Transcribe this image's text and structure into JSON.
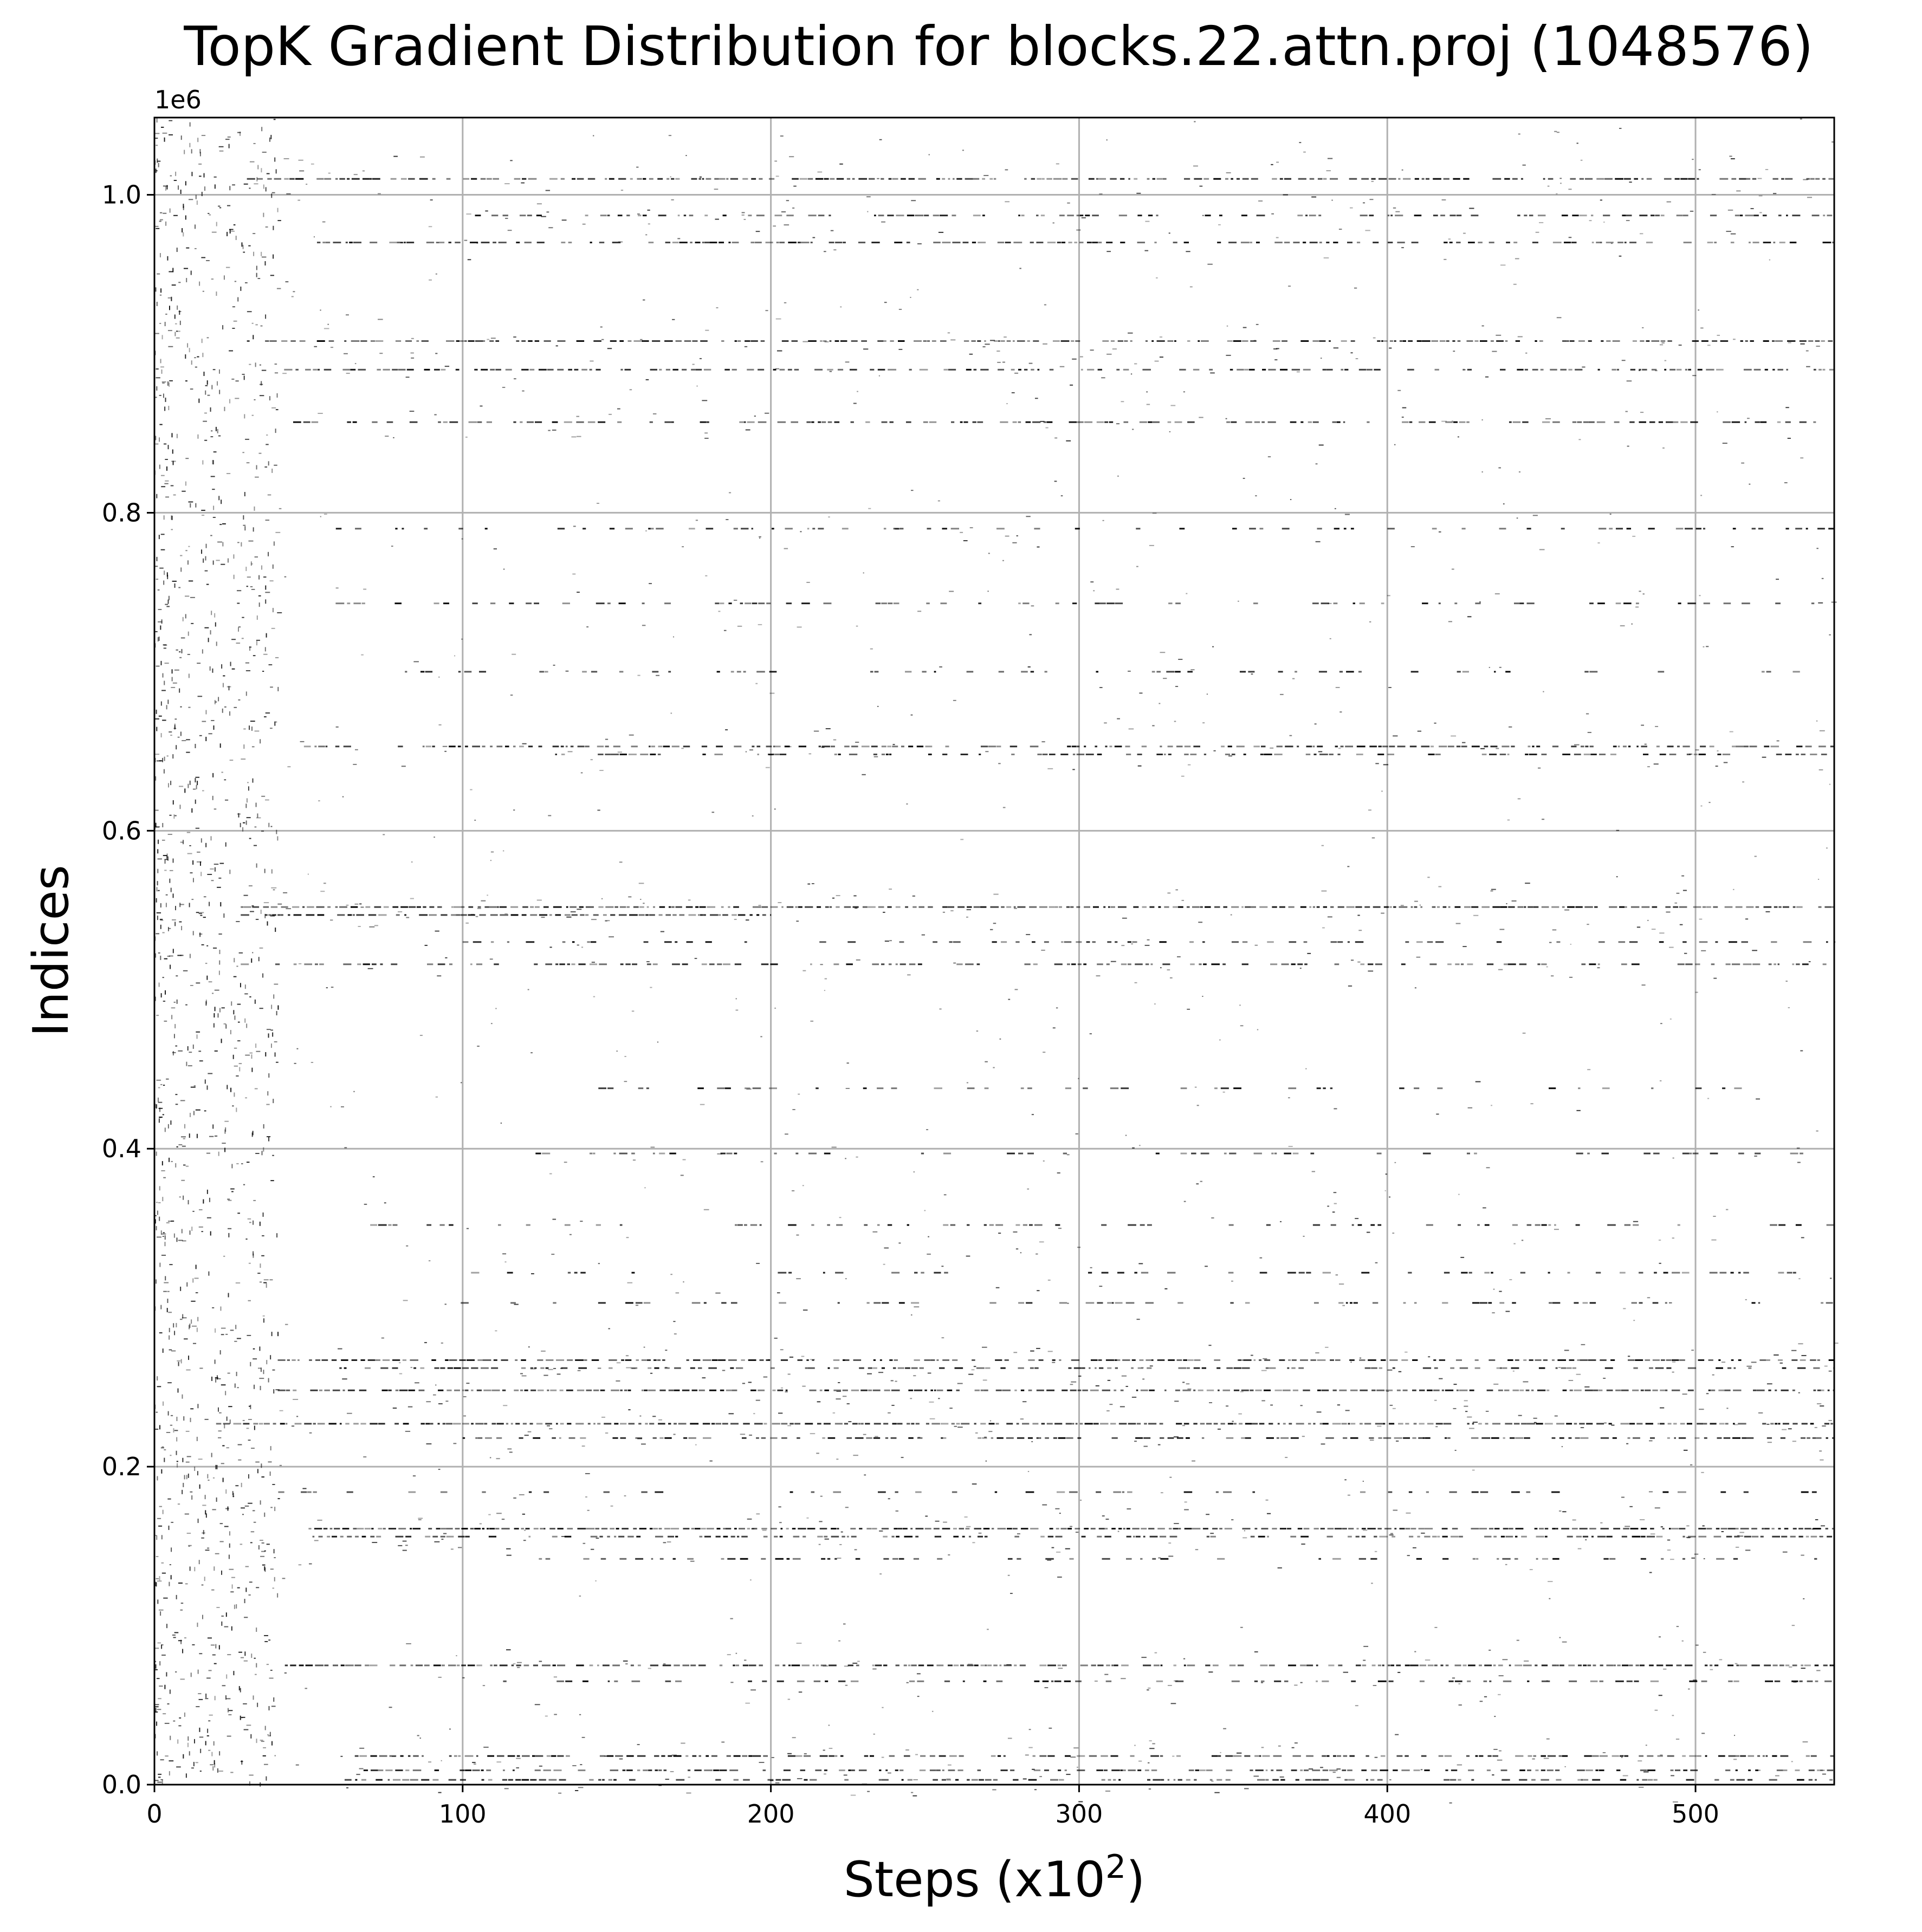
{
  "chart_data": {
    "type": "scatter",
    "title": "TopK Gradient Distribution for blocks.22.attn.proj (1048576)",
    "xlabel": "Steps (x10",
    "xlabel_superscript": "2",
    "xlabel_suffix": ")",
    "ylabel": "Indices",
    "y_offset_label": "1e6",
    "xlim": [
      0,
      545
    ],
    "ylim": [
      0,
      1048576
    ],
    "x_ticks": [
      0,
      100,
      200,
      300,
      400,
      500
    ],
    "x_tick_labels": [
      "0",
      "100",
      "200",
      "300",
      "400",
      "500"
    ],
    "y_ticks": [
      0,
      200000,
      400000,
      600000,
      800000,
      1000000
    ],
    "y_tick_labels": [
      "0.0",
      "0.2",
      "0.4",
      "0.6",
      "0.8",
      "1.0"
    ],
    "grid": true,
    "marker_color": "#000000",
    "grid_color": "#b0b0b0",
    "dense_bands": [
      {
        "y": 1010000,
        "x_start": 30,
        "x_end": 545,
        "density": 0.85
      },
      {
        "y": 987000,
        "x_start": 90,
        "x_end": 545,
        "density": 0.55
      },
      {
        "y": 970000,
        "x_start": 50,
        "x_end": 545,
        "density": 0.6
      },
      {
        "y": 908000,
        "x_start": 30,
        "x_end": 545,
        "density": 0.75
      },
      {
        "y": 890000,
        "x_start": 40,
        "x_end": 545,
        "density": 0.7
      },
      {
        "y": 857000,
        "x_start": 45,
        "x_end": 545,
        "density": 0.55
      },
      {
        "y": 790000,
        "x_start": 55,
        "x_end": 545,
        "density": 0.3
      },
      {
        "y": 743000,
        "x_start": 40,
        "x_end": 545,
        "density": 0.35
      },
      {
        "y": 700000,
        "x_start": 55,
        "x_end": 545,
        "density": 0.25
      },
      {
        "y": 653000,
        "x_start": 45,
        "x_end": 545,
        "density": 0.7
      },
      {
        "y": 648000,
        "x_start": 130,
        "x_end": 545,
        "density": 0.45
      },
      {
        "y": 552000,
        "x_start": 28,
        "x_end": 545,
        "density": 0.95
      },
      {
        "y": 547000,
        "x_start": 28,
        "x_end": 200,
        "density": 0.9
      },
      {
        "y": 530000,
        "x_start": 100,
        "x_end": 545,
        "density": 0.35
      },
      {
        "y": 516000,
        "x_start": 28,
        "x_end": 545,
        "density": 0.5
      },
      {
        "y": 438000,
        "x_start": 140,
        "x_end": 545,
        "density": 0.2
      },
      {
        "y": 397000,
        "x_start": 120,
        "x_end": 545,
        "density": 0.3
      },
      {
        "y": 352000,
        "x_start": 70,
        "x_end": 545,
        "density": 0.35
      },
      {
        "y": 322000,
        "x_start": 100,
        "x_end": 545,
        "density": 0.3
      },
      {
        "y": 303000,
        "x_start": 75,
        "x_end": 545,
        "density": 0.3
      },
      {
        "y": 267000,
        "x_start": 40,
        "x_end": 545,
        "density": 0.75
      },
      {
        "y": 262000,
        "x_start": 60,
        "x_end": 545,
        "density": 0.55
      },
      {
        "y": 248000,
        "x_start": 40,
        "x_end": 545,
        "density": 0.85
      },
      {
        "y": 227000,
        "x_start": 20,
        "x_end": 545,
        "density": 0.95
      },
      {
        "y": 218000,
        "x_start": 100,
        "x_end": 545,
        "density": 0.6
      },
      {
        "y": 184000,
        "x_start": 35,
        "x_end": 545,
        "density": 0.2
      },
      {
        "y": 161000,
        "x_start": 50,
        "x_end": 545,
        "density": 0.9
      },
      {
        "y": 156000,
        "x_start": 50,
        "x_end": 545,
        "density": 0.6
      },
      {
        "y": 142000,
        "x_start": 120,
        "x_end": 545,
        "density": 0.25
      },
      {
        "y": 75000,
        "x_start": 40,
        "x_end": 545,
        "density": 0.8
      },
      {
        "y": 65000,
        "x_start": 110,
        "x_end": 545,
        "density": 0.4
      },
      {
        "y": 18000,
        "x_start": 65,
        "x_end": 545,
        "density": 0.65
      },
      {
        "y": 9000,
        "x_start": 65,
        "x_end": 545,
        "density": 0.7
      },
      {
        "y": 3000,
        "x_start": 60,
        "x_end": 545,
        "density": 0.5
      }
    ],
    "sparse_scatter": {
      "x_start": 0,
      "x_end": 40,
      "density_note": "random scattered indices across full range at early steps"
    }
  }
}
